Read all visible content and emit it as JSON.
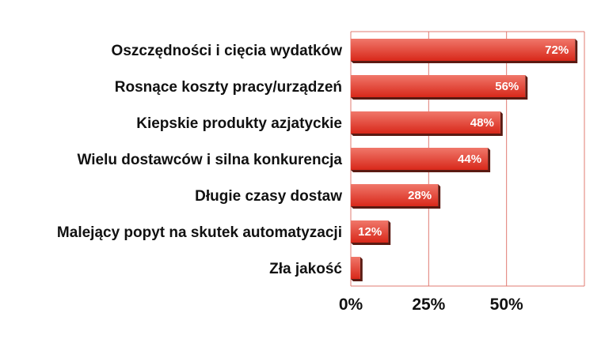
{
  "chart_data": {
    "type": "bar",
    "orientation": "horizontal",
    "categories": [
      "Oszczędności i cięcia wydatków",
      "Rosnące koszty pracy/urządzeń",
      "Kiepskie produkty azjatyckie",
      "Wielu dostawców i silna konkurencja",
      "Długie czasy dostaw",
      "Malejący popyt na skutek automatyzacji",
      "Zła jakość"
    ],
    "values": [
      72,
      56,
      48,
      44,
      28,
      12,
      3
    ],
    "data_labels": [
      "72%",
      "56%",
      "48%",
      "44%",
      "28%",
      "12%",
      ""
    ],
    "xlim": [
      0,
      75
    ],
    "xticks": [
      0,
      25,
      50
    ],
    "xtick_labels": [
      "0%",
      "25%",
      "50%"
    ],
    "grid": true,
    "legend": "none",
    "colors": {
      "bar_top": "#f0776a",
      "bar_bottom": "#d8281a",
      "bar_shadow": "#5a1a12",
      "grid": "#e07b72",
      "text": "#111111"
    }
  }
}
